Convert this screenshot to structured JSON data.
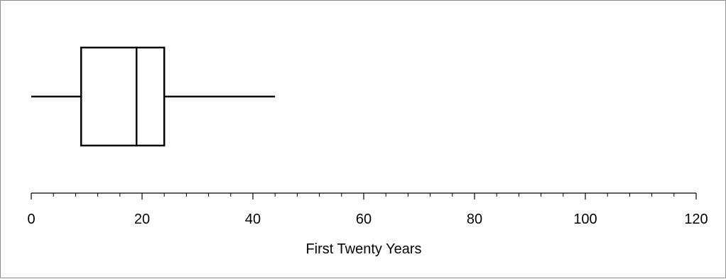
{
  "chart_data": {
    "type": "boxplot",
    "title": "",
    "xlabel": "First Twenty Years",
    "ylabel": "",
    "xlim": [
      0,
      120
    ],
    "major_ticks": [
      0,
      20,
      40,
      60,
      80,
      100,
      120
    ],
    "minor_tick_step": 4,
    "tick_labels": [
      "0",
      "20",
      "40",
      "60",
      "80",
      "100",
      "120"
    ],
    "grid": false,
    "series": [
      {
        "min": 0,
        "q1": 9,
        "median": 19,
        "q3": 24,
        "max": 44
      }
    ]
  }
}
